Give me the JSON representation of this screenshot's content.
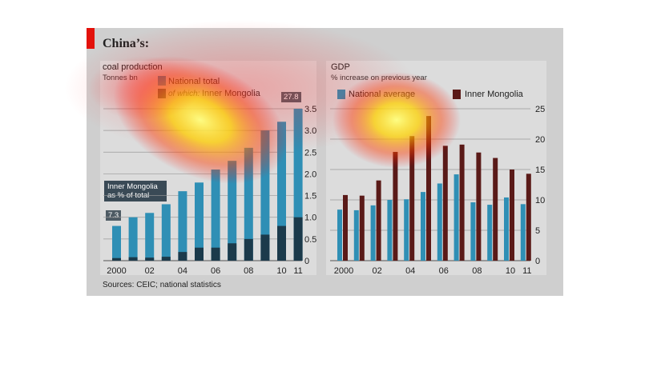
{
  "title": "China’s:",
  "source": "Sources: CEIC; national statistics",
  "colors": {
    "accent": "#e3120b",
    "national": "#2f8fb5",
    "mongolia_coal": "#1b3a4b",
    "mongolia_gdp": "#5a1a18"
  },
  "left_panel": {
    "title": "coal production",
    "unit": "Tonnes bn",
    "legend_total": "National total",
    "legend_which": "of which:",
    "legend_mongolia": "Inner Mongolia",
    "callout": "Inner Mongolia as % of total",
    "first_label": "7.3",
    "last_label": "27.8"
  },
  "right_panel": {
    "title": "GDP",
    "unit": "% increase on previous year",
    "legend_national": "National average",
    "legend_mongolia": "Inner Mongolia"
  },
  "chart_data": [
    {
      "type": "bar",
      "title": "coal production",
      "ylabel": "Tonnes bn",
      "x": [
        "2000",
        "01",
        "02",
        "03",
        "04",
        "05",
        "06",
        "07",
        "08",
        "09",
        "10",
        "11"
      ],
      "tick_labels": [
        "2000",
        "02",
        "04",
        "06",
        "08",
        "10",
        "11"
      ],
      "ylim": [
        0,
        3.5
      ],
      "yticks": [
        0,
        0.5,
        1.0,
        1.5,
        2.0,
        2.5,
        3.0,
        3.5
      ],
      "series": [
        {
          "name": "National total",
          "values": [
            0.8,
            1.0,
            1.1,
            1.3,
            1.6,
            1.8,
            2.1,
            2.3,
            2.6,
            3.0,
            3.2,
            3.5
          ]
        },
        {
          "name": "Inner Mongolia",
          "values": [
            0.06,
            0.08,
            0.07,
            0.09,
            0.2,
            0.3,
            0.3,
            0.4,
            0.5,
            0.6,
            0.8,
            1.0
          ]
        }
      ],
      "annotations": [
        {
          "label": "7.3",
          "x": "2000"
        },
        {
          "label": "27.8",
          "x": "11"
        }
      ]
    },
    {
      "type": "bar",
      "title": "GDP",
      "ylabel": "% increase on previous year",
      "x": [
        "2000",
        "01",
        "02",
        "03",
        "04",
        "05",
        "06",
        "07",
        "08",
        "09",
        "10",
        "11"
      ],
      "tick_labels": [
        "2000",
        "02",
        "04",
        "06",
        "08",
        "10",
        "11"
      ],
      "ylim": [
        0,
        25
      ],
      "yticks": [
        0,
        5,
        10,
        15,
        20,
        25
      ],
      "series": [
        {
          "name": "National average",
          "values": [
            8.4,
            8.3,
            9.1,
            10.0,
            10.1,
            11.3,
            12.7,
            14.2,
            9.6,
            9.2,
            10.4,
            9.3
          ]
        },
        {
          "name": "Inner Mongolia",
          "values": [
            10.8,
            10.7,
            13.2,
            17.9,
            20.5,
            23.8,
            18.9,
            19.1,
            17.8,
            16.9,
            15.0,
            14.3
          ]
        }
      ]
    }
  ]
}
